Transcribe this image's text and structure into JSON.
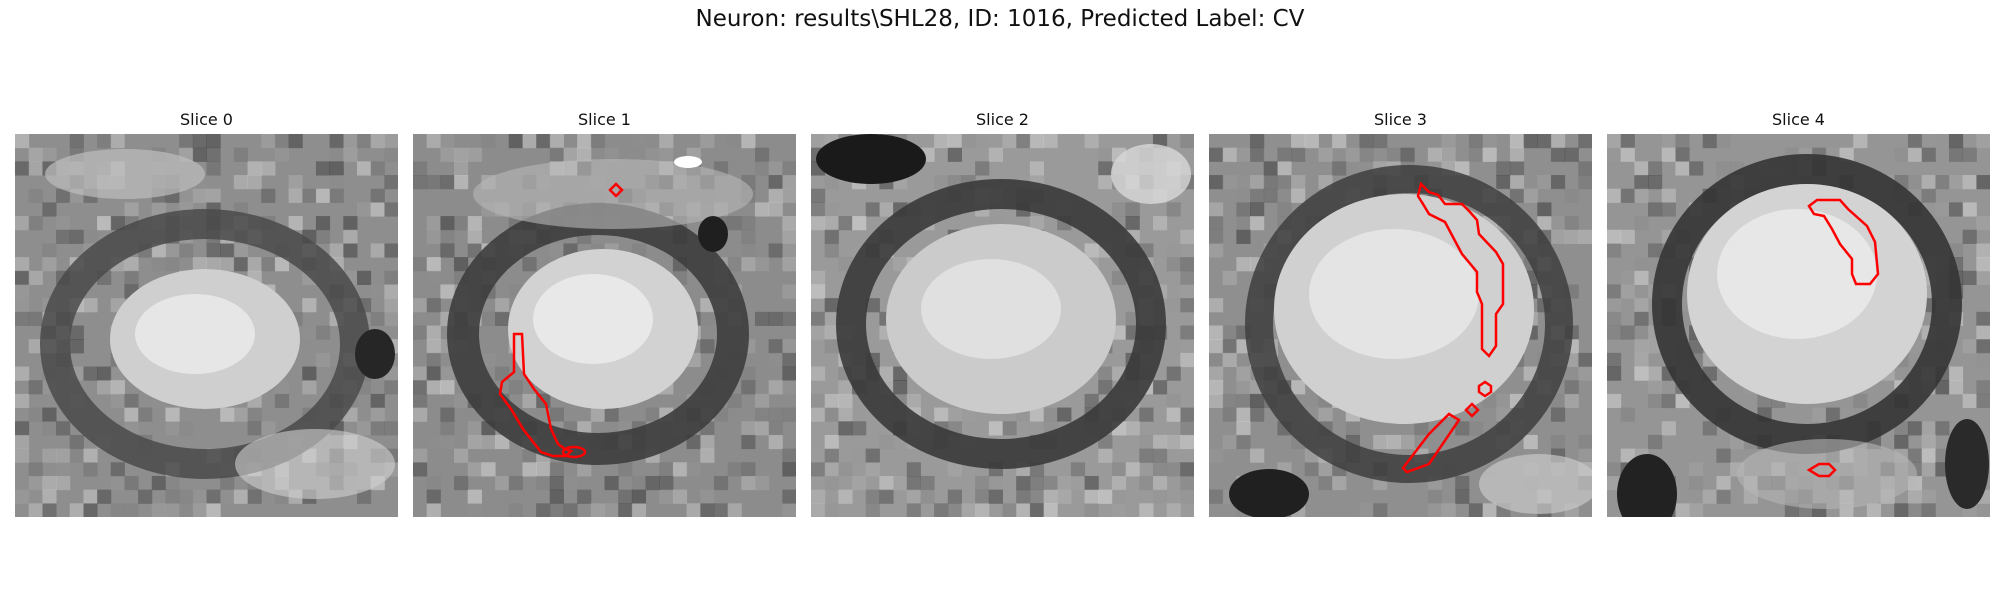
{
  "figure": {
    "title": "Neuron: results\\SHL28, ID: 1016, Predicted Label: CV"
  },
  "panels": [
    {
      "title": "Slice 0",
      "contours": []
    },
    {
      "title": "Slice 1",
      "contours": [
        "red-contour"
      ]
    },
    {
      "title": "Slice 2",
      "contours": []
    },
    {
      "title": "Slice 3",
      "contours": [
        "red-contour"
      ]
    },
    {
      "title": "Slice 4",
      "contours": [
        "red-contour"
      ]
    }
  ],
  "colors": {
    "contour": "#ff0000",
    "background": "#ffffff"
  },
  "image": {
    "colormap": "grayscale",
    "grid": "none"
  }
}
